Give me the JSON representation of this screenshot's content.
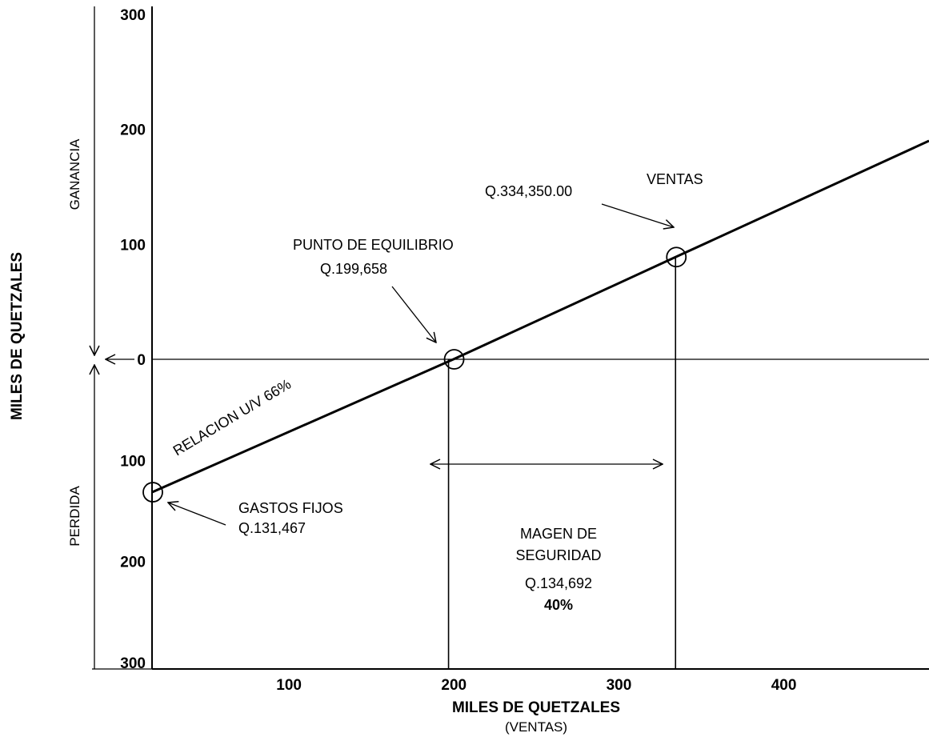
{
  "chart_data": {
    "type": "line",
    "xlabel": "MILES DE QUETZALES",
    "xlabel_sub": "(VENTAS)",
    "ylabel": "MILES DE QUETZALES",
    "x_ticks": [
      "100",
      "200",
      "300",
      "400"
    ],
    "x_tick_values": [
      100,
      200,
      300,
      400
    ],
    "y_ticks": [
      {
        "label": "300",
        "value": 300
      },
      {
        "label": "200",
        "value": 200
      },
      {
        "label": "100",
        "value": 100
      },
      {
        "label": "0",
        "value": 0
      },
      {
        "label": "100",
        "value": -100
      },
      {
        "label": "200",
        "value": -200
      },
      {
        "label": "300",
        "value": -300
      }
    ],
    "xlim": [
      17,
      488
    ],
    "ylim": [
      -300,
      300
    ],
    "series": [
      {
        "x": [
          17,
          199.658,
          334.35,
          488
        ],
        "y": [
          -131.467,
          0,
          88.9,
          190
        ]
      }
    ],
    "points": [
      {
        "x": 17,
        "y": -131.467
      },
      {
        "x": 199.658,
        "y": 0
      },
      {
        "x": 334.35,
        "y": 88.9
      }
    ],
    "region_labels": {
      "upper": "GANANCIA",
      "lower": "PERDIDA"
    },
    "annotations": {
      "ventas": "VENTAS",
      "ventas_value": "Q.334,350.00",
      "equilibrio": "PUNTO DE EQUILIBRIO",
      "equilibrio_value": "Q.199,658",
      "relacion": "RELACION U/V 66%",
      "gastos": "GASTOS FIJOS",
      "gastos_value": "Q.131,467",
      "margen_1": "MAGEN DE",
      "margen_2": "SEGURIDAD",
      "margen_value": "Q.134,692",
      "margen_pct": "40%"
    },
    "grid": false
  }
}
